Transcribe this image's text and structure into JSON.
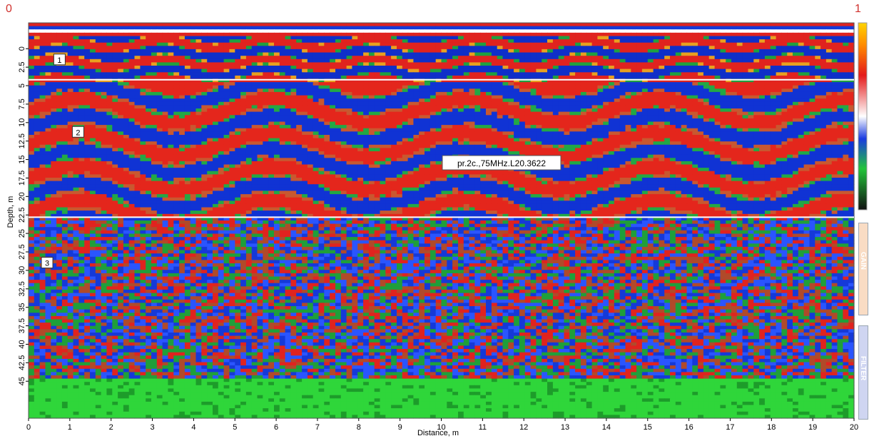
{
  "header": {
    "left_marker": "0",
    "right_marker": "1"
  },
  "side_panels": {
    "gain_label": "GAIN",
    "filter_label": "FILTER"
  },
  "chart_data": {
    "type": "heatmap",
    "title": "pr.2c.,75MHz.L20.3622",
    "xlabel": "Distance, m",
    "ylabel": "Depth, m",
    "xlim": [
      0,
      20
    ],
    "ylim": [
      -3.5,
      50
    ],
    "y_inverted": true,
    "x_ticks": [
      0,
      1,
      2,
      3,
      4,
      5,
      6,
      7,
      8,
      9,
      10,
      11,
      12,
      13,
      14,
      15,
      16,
      17,
      18,
      19,
      20
    ],
    "y_ticks": [
      "0",
      "2.5",
      "5",
      "7.5",
      "10",
      "12.5",
      "15",
      "17.5",
      "20",
      "22.5",
      "25",
      "27.5",
      "30",
      "32.5",
      "35",
      "37.5",
      "40",
      "42.5",
      "45"
    ],
    "colorscale": [
      "#ffd400",
      "#ff8a00",
      "#e41a1a",
      "#ffffff",
      "#0b2fd6",
      "#22c43a",
      "#1b1b1b"
    ],
    "boundaries": [
      {
        "name": "",
        "depth": 4.2,
        "color": "#ffffff"
      },
      {
        "name": "",
        "depth": 22.8,
        "color": "#ffffff"
      }
    ],
    "layers": [
      {
        "label": "1",
        "x": 0.75,
        "depth": 1.5
      },
      {
        "label": "2",
        "x": 1.2,
        "depth": 11.3
      },
      {
        "label": "3",
        "x": 0.45,
        "depth": 29.0
      }
    ]
  }
}
